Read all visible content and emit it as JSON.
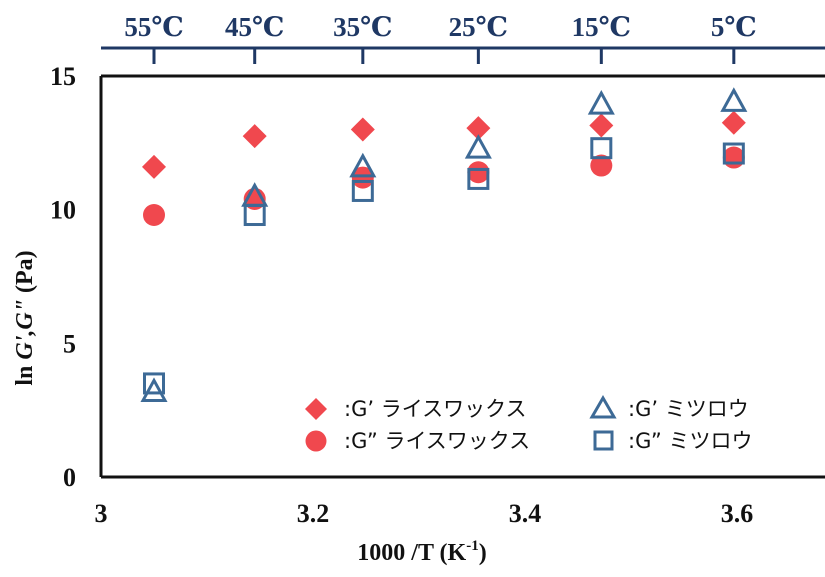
{
  "chart_data": {
    "type": "scatter",
    "xlabel": "1000 /T (K-1)",
    "xlabel_parts": {
      "main": "1000 /T (K",
      "sup": "-1",
      "close": ")"
    },
    "ylabel": "ln G',G\" (Pa)",
    "ylabel_parts": {
      "prefix": "ln ",
      "italic": "G',G\"",
      "suffix": " (Pa)"
    },
    "xlim": [
      3,
      3.7
    ],
    "ylim": [
      0,
      15
    ],
    "x_ticks": [
      "3",
      "3.2",
      "3.4",
      "3.6"
    ],
    "x_tick_values": [
      3,
      3.2,
      3.4,
      3.6
    ],
    "y_ticks": [
      "0",
      "5",
      "10",
      "15"
    ],
    "y_tick_values": [
      0,
      5,
      10,
      15
    ],
    "top_axis": {
      "labels": [
        "55℃",
        "45℃",
        "35℃",
        "25℃",
        "15℃",
        "5℃"
      ],
      "positions": [
        3.05,
        3.145,
        3.247,
        3.356,
        3.472,
        3.597
      ]
    },
    "legend_position": "bottom-right",
    "series": [
      {
        "name": ":G’ ライスワックス",
        "marker": "diamond",
        "color": "#f0484e",
        "x": [
          3.05,
          3.145,
          3.247,
          3.356,
          3.472,
          3.597
        ],
        "y": [
          11.6,
          12.75,
          13.0,
          13.05,
          13.15,
          13.25
        ]
      },
      {
        "name": ":G” ライスワックス",
        "marker": "circle",
        "color": "#f0484e",
        "x": [
          3.05,
          3.145,
          3.247,
          3.356,
          3.472,
          3.597
        ],
        "y": [
          9.8,
          10.4,
          11.2,
          11.4,
          11.65,
          11.95
        ]
      },
      {
        "name": ":G’ ミツロウ",
        "marker": "triangle-open",
        "color": "#3d6a96",
        "x": [
          3.05,
          3.145,
          3.247,
          3.356,
          3.472,
          3.597
        ],
        "y": [
          3.2,
          10.5,
          11.6,
          12.3,
          13.95,
          14.05
        ]
      },
      {
        "name": ":G” ミツロウ",
        "marker": "square-open",
        "color": "#3d6a96",
        "x": [
          3.05,
          3.145,
          3.247,
          3.356,
          3.472,
          3.597
        ],
        "y": [
          3.5,
          9.8,
          10.7,
          11.15,
          12.3,
          12.1
        ]
      }
    ]
  }
}
